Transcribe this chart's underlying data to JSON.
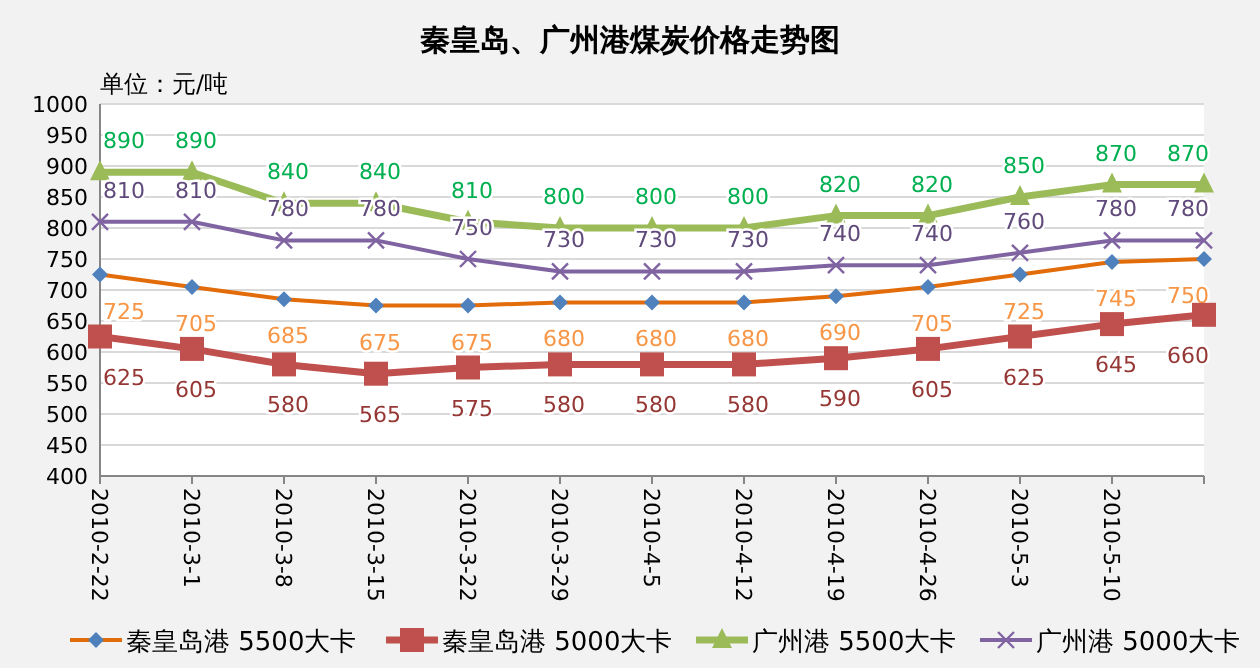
{
  "chart_data": {
    "type": "line",
    "title": "秦皇岛、广州港煤炭价格走势图",
    "ylabel": "单位：元/吨",
    "categories": [
      "2010-2-22",
      "2010-3-1",
      "2010-3-8",
      "2010-3-15",
      "2010-3-22",
      "2010-3-29",
      "2010-4-5",
      "2010-4-12",
      "2010-4-19",
      "2010-4-26",
      "2010-5-3",
      "2010-5-10",
      null
    ],
    "series": [
      {
        "name": "秦皇岛港 5500大卡",
        "color": "#e36c0a",
        "marker": "diamond",
        "values": [
          725,
          705,
          685,
          675,
          675,
          680,
          680,
          680,
          690,
          705,
          725,
          745,
          750
        ]
      },
      {
        "name": "秦皇岛港 5000大卡",
        "color": "#c0504d",
        "marker": "square",
        "values": [
          625,
          605,
          580,
          565,
          575,
          580,
          580,
          580,
          590,
          605,
          625,
          645,
          660
        ]
      },
      {
        "name": "广州港 5500大卡",
        "color": "#9bbb59",
        "marker": "triangle",
        "values": [
          890,
          890,
          840,
          840,
          810,
          800,
          800,
          800,
          820,
          820,
          850,
          870,
          870
        ]
      },
      {
        "name": "广州港 5000大卡",
        "color": "#8064a2",
        "marker": "cross",
        "values": [
          810,
          810,
          780,
          780,
          750,
          730,
          730,
          730,
          740,
          740,
          760,
          780,
          780
        ]
      }
    ],
    "ylim": [
      400,
      1000
    ],
    "yticks": [
      400,
      450,
      500,
      550,
      600,
      650,
      700,
      750,
      800,
      850,
      900,
      950,
      1000
    ],
    "grid": "y",
    "legend": "bottom",
    "data_labels": true
  }
}
